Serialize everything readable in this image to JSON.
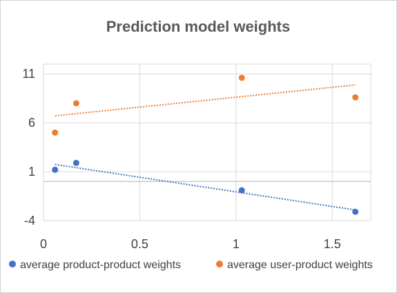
{
  "chart_data": {
    "type": "scatter",
    "title": "Prediction model weights",
    "xlabel": "",
    "ylabel": "",
    "xlim": [
      0,
      1.7
    ],
    "ylim": [
      -4,
      12
    ],
    "x_ticks": [
      0,
      0.5,
      1,
      1.5
    ],
    "x_tick_labels": [
      "0",
      "0.5",
      "1",
      "1.5"
    ],
    "y_ticks": [
      -4,
      1,
      6,
      11
    ],
    "y_tick_labels": [
      "-4",
      "1",
      "6",
      "11"
    ],
    "grid": true,
    "legend_position": "bottom",
    "series": [
      {
        "name": "average product-product weights",
        "color": "#4472c4",
        "x": [
          0.06,
          0.17,
          1.03,
          1.62
        ],
        "y": [
          1.2,
          1.9,
          -0.9,
          -3.1
        ],
        "trendline": "linear"
      },
      {
        "name": "average user-product weights",
        "color": "#ed7d31",
        "x": [
          0.06,
          0.17,
          1.03,
          1.62
        ],
        "y": [
          5.0,
          8.0,
          10.6,
          8.6
        ],
        "trendline": "linear"
      }
    ]
  }
}
